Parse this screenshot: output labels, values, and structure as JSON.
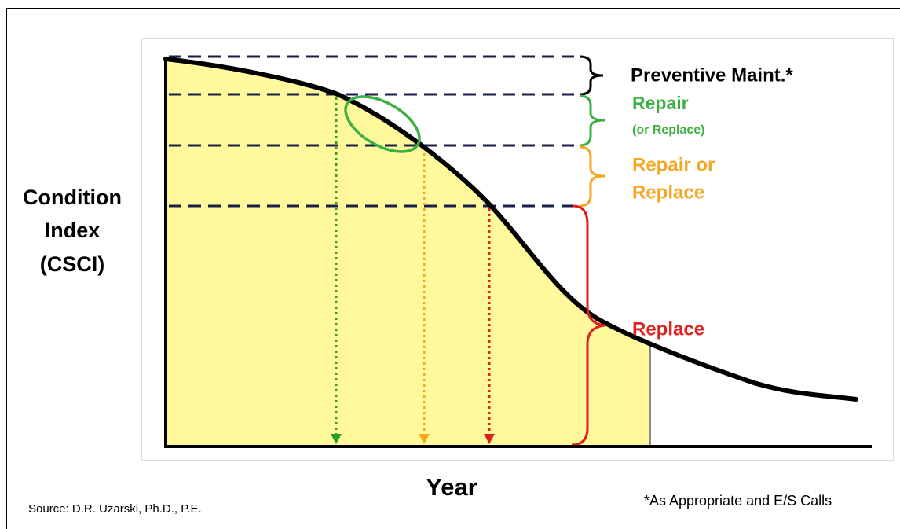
{
  "y_axis_label": [
    "Condition",
    "Index",
    "(CSCI)"
  ],
  "x_axis_label": "Year",
  "zones": [
    {
      "label": [
        "Preventive Maint.*"
      ]
    },
    {
      "label": [
        "Repair",
        "(or Replace)"
      ]
    },
    {
      "label": [
        "Repair or",
        "Replace"
      ]
    },
    {
      "label": [
        "Replace"
      ]
    }
  ],
  "source": "Source: D.R. Uzarski, Ph.D., P.E.",
  "footnote": "*As Appropriate and E/S Calls"
}
